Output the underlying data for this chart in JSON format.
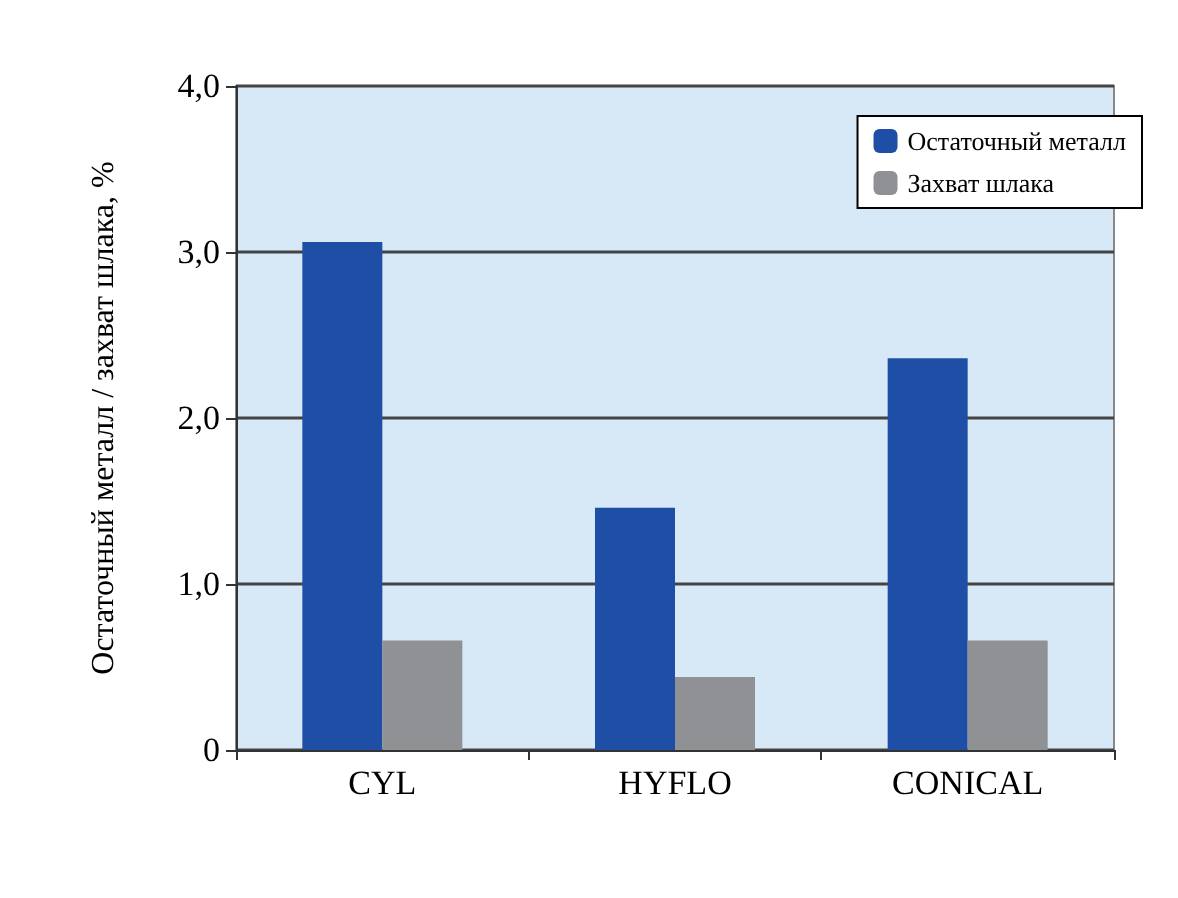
{
  "chart_data": {
    "type": "bar",
    "ylabel": "Остаточный металл / захват шлака, %",
    "categories": [
      "CYL",
      "HYFLO",
      "CONICAL"
    ],
    "series": [
      {
        "name": "Остаточный металл",
        "color": "#1f4ea6",
        "values": [
          3.06,
          1.46,
          2.36
        ]
      },
      {
        "name": "Захват шлака",
        "color": "#8f9194",
        "values": [
          0.66,
          0.44,
          0.66
        ]
      }
    ],
    "ylim": [
      0,
      4
    ],
    "yticks": [
      {
        "value": 0,
        "label": "0"
      },
      {
        "value": 1,
        "label": "1,0"
      },
      {
        "value": 2,
        "label": "2,0"
      },
      {
        "value": 3,
        "label": "3,0"
      },
      {
        "value": 4,
        "label": "4,0"
      }
    ],
    "grid": "y",
    "legend": "top right"
  }
}
